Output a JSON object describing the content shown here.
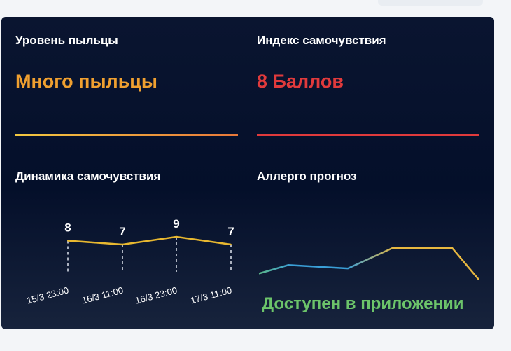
{
  "pollen": {
    "title": "Уровень пыльцы",
    "value": "Много пыльцы",
    "color": "#f0a030"
  },
  "wellbeing": {
    "title": "Индекс самочувствия",
    "value": "8 Баллов",
    "color": "#e03a3c"
  },
  "dynamics": {
    "title": "Динамика самочувствия"
  },
  "forecast": {
    "title": "Аллерго прогноз",
    "note": "Доступен в приложении",
    "note_color": "#6cc46a"
  },
  "chart_data": [
    {
      "type": "line",
      "categories": [
        "15/3 23:00",
        "16/3 11:00",
        "16/3 23:00",
        "17/3 11:00"
      ],
      "values": [
        8,
        7,
        9,
        7
      ],
      "labels": [
        "8",
        "7",
        "9",
        "7"
      ],
      "color": "#e8b830"
    },
    {
      "type": "line",
      "values": [
        2,
        3,
        2.6,
        5,
        5,
        1.3
      ],
      "colors": [
        "#5cb88a",
        "#3a9fd8",
        "#e8b840"
      ]
    }
  ]
}
